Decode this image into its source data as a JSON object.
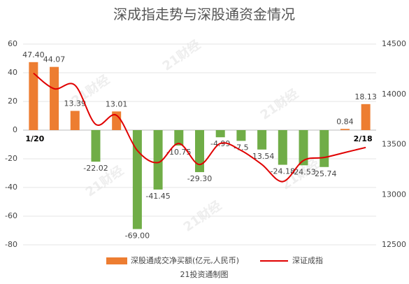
{
  "chart_data": {
    "type": "bar-line",
    "title": "深成指走势与深股通资金情况",
    "watermark": "21财经",
    "footer": "21投资通制图",
    "categories": [
      "1/20",
      null,
      null,
      null,
      null,
      null,
      null,
      null,
      null,
      null,
      null,
      null,
      null,
      null,
      null,
      null,
      "2/18"
    ],
    "series": [
      {
        "name": "深股通成交净买额(亿元,人民币)",
        "type": "bar",
        "color": "#ed7d31",
        "negative_color": "#70ad47",
        "values": [
          47.4,
          44.07,
          13.39,
          -22.02,
          13.01,
          -69.0,
          -41.45,
          -10.75,
          -29.3,
          -4.99,
          -7.5,
          -13.54,
          -24.18,
          -24.53,
          -25.74,
          0.84,
          18.13
        ],
        "value_labels": [
          "47.40",
          "44.07",
          "13.39",
          "-22.02",
          "13.01",
          "-69.00",
          "-41.45",
          "-10.75",
          "-29.30",
          "-4.99",
          "-7.5",
          "-13.54",
          "-24.18",
          "-24.53",
          "-25.74",
          "0.84",
          "18.13"
        ]
      },
      {
        "name": "深证成指",
        "type": "line",
        "axis": "y2",
        "color": "#e00000",
        "values": [
          14210,
          14055,
          14090,
          13700,
          13790,
          13440,
          13320,
          13510,
          13300,
          13510,
          13440,
          13300,
          13130,
          13340,
          13370,
          13420,
          13470
        ]
      }
    ],
    "ylim": [
      -80,
      60
    ],
    "yticks": [
      -80,
      -60,
      -40,
      -20,
      0,
      20,
      40,
      60
    ],
    "y2lim": [
      12500,
      14500
    ],
    "y2ticks": [
      12500,
      13000,
      13500,
      14000,
      14500
    ],
    "grid": true,
    "legend": "bottom"
  }
}
